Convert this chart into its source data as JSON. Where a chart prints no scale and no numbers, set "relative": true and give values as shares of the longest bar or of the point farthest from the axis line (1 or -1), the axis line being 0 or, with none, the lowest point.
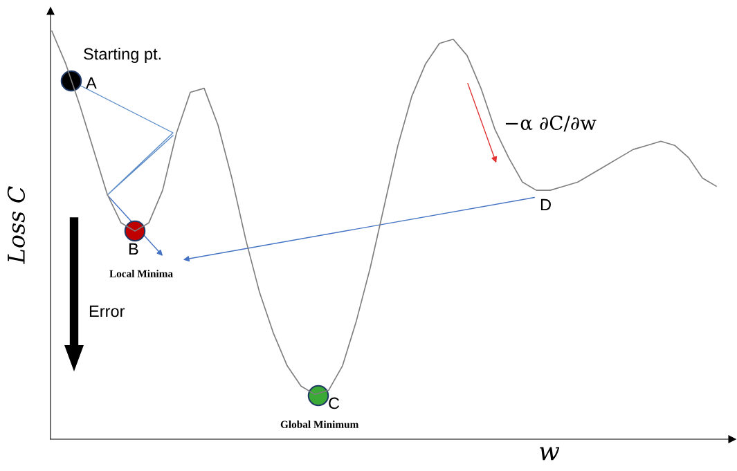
{
  "chart_data": {
    "type": "line",
    "relative": true,
    "xlabel": "w",
    "ylabel": "Loss C",
    "categories": [
      null,
      null,
      null,
      null,
      null,
      null,
      null,
      null,
      null,
      null,
      null,
      null,
      null,
      null,
      null,
      null,
      null,
      null,
      null,
      null,
      null,
      null,
      null,
      null,
      null,
      null,
      null,
      null,
      null,
      null,
      null,
      null,
      null,
      null,
      null,
      null,
      null,
      null,
      null,
      null,
      null,
      null,
      null,
      null,
      null,
      null,
      null,
      null,
      null
    ],
    "series": [
      {
        "color": "#7f7f7f",
        "values": [
          1.0,
          0.92,
          0.82,
          0.71,
          0.6,
          0.53,
          0.51,
          0.53,
          0.61,
          0.75,
          0.85,
          0.86,
          0.77,
          0.64,
          0.49,
          0.36,
          0.26,
          0.18,
          0.13,
          0.11,
          0.12,
          0.18,
          0.29,
          0.42,
          0.57,
          0.72,
          0.84,
          0.92,
          0.97,
          0.98,
          0.94,
          0.86,
          0.76,
          0.69,
          0.63,
          0.61,
          0.61,
          0.62,
          0.63,
          0.65,
          0.67,
          0.69,
          0.71,
          0.72,
          0.73,
          0.72,
          0.69,
          0.64,
          0.62
        ]
      }
    ],
    "annotations": [
      "Starting pt.",
      "A",
      "B",
      "Local Minima",
      "Error",
      "C",
      "Global Minimum",
      "D",
      "−α ∂C/∂w"
    ]
  }
}
